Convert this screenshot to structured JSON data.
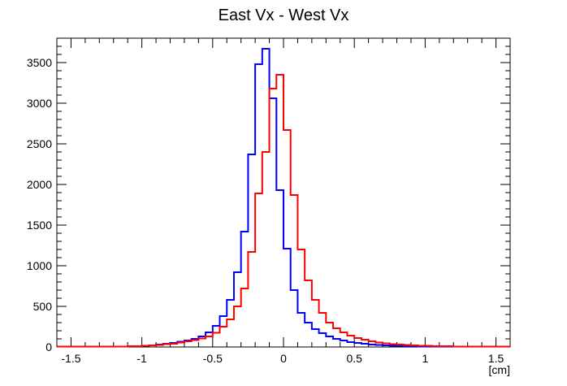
{
  "chart_data": {
    "type": "line",
    "title": "East Vx - West Vx",
    "xlabel": "[cm]",
    "ylabel": "",
    "xlim": [
      -1.6,
      1.6
    ],
    "ylim": [
      0,
      3800
    ],
    "grid": false,
    "x_ticks": [
      -1.5,
      -1,
      -0.5,
      0,
      0.5,
      1,
      1.5
    ],
    "x_tick_labels": [
      "-1.5",
      "-1",
      "-0.5",
      "0",
      "0.5",
      "1",
      "1.5"
    ],
    "y_ticks": [
      0,
      500,
      1000,
      1500,
      2000,
      2500,
      3000,
      3500
    ],
    "y_tick_labels": [
      "0",
      "500",
      "1000",
      "1500",
      "2000",
      "2500",
      "3000",
      "3500"
    ],
    "bin_width": 0.05,
    "series": [
      {
        "color": "#0000ff",
        "bin_edges_start": -1.6,
        "values": [
          5,
          5,
          5,
          5,
          5,
          5,
          5,
          5,
          5,
          5,
          10,
          10,
          15,
          20,
          30,
          40,
          50,
          65,
          80,
          100,
          130,
          180,
          260,
          380,
          580,
          920,
          1420,
          2370,
          3480,
          3670,
          3060,
          1930,
          1210,
          700,
          420,
          300,
          220,
          170,
          130,
          100,
          80,
          60,
          50,
          40,
          30,
          25,
          20,
          15,
          15,
          10,
          10,
          5,
          5,
          5,
          5,
          5,
          5,
          5,
          5,
          5,
          5,
          5,
          5,
          5
        ]
      },
      {
        "color": "#ff0000",
        "bin_edges_start": -1.6,
        "values": [
          5,
          5,
          5,
          5,
          5,
          5,
          5,
          5,
          5,
          5,
          10,
          10,
          15,
          20,
          25,
          35,
          40,
          55,
          70,
          85,
          105,
          130,
          175,
          250,
          340,
          500,
          720,
          1170,
          1890,
          2400,
          3180,
          3350,
          2670,
          1870,
          1200,
          820,
          580,
          420,
          300,
          230,
          180,
          140,
          110,
          90,
          70,
          55,
          45,
          35,
          30,
          25,
          20,
          15,
          15,
          10,
          10,
          10,
          5,
          5,
          5,
          5,
          5,
          5,
          5,
          5
        ]
      }
    ]
  }
}
